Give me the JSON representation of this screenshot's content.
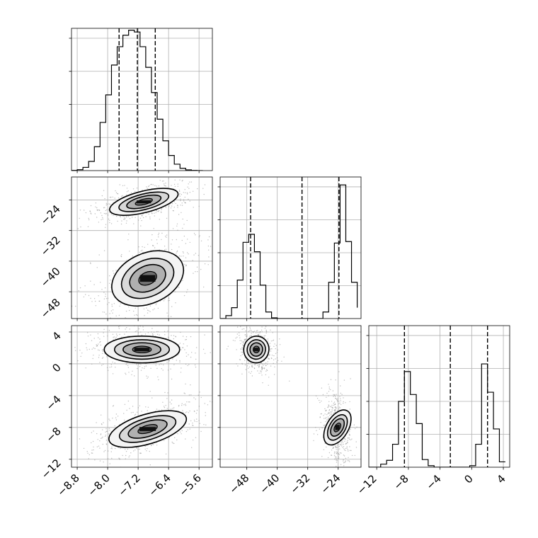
{
  "chart_data": [
    {
      "type": "histogram",
      "panel": "row0-col0",
      "xlim": [
        -8.95,
        -5.25
      ],
      "ylim": [
        0,
        3100
      ],
      "x_ticks": [
        -8.8,
        -8.0,
        -7.2,
        -6.4,
        -5.6
      ],
      "bin_edges": [
        -8.95,
        -8.8,
        -8.65,
        -8.5,
        -8.35,
        -8.2,
        -8.05,
        -7.9,
        -7.75,
        -7.6,
        -7.45,
        -7.3,
        -7.15,
        -7.0,
        -6.85,
        -6.7,
        -6.55,
        -6.4,
        -6.25,
        -6.1,
        -5.95,
        -5.8,
        -5.65,
        -5.5
      ],
      "counts": [
        5,
        20,
        70,
        200,
        520,
        1050,
        1650,
        2300,
        2700,
        2950,
        3060,
        3020,
        2700,
        2250,
        1700,
        1120,
        650,
        330,
        140,
        50,
        15,
        4,
        1
      ],
      "quantile_lines": [
        -7.7,
        -7.22,
        -6.75
      ]
    },
    {
      "type": "histogram",
      "panel": "row1-col1",
      "xlim": [
        -55,
        -18
      ],
      "ylim": [
        0,
        1950
      ],
      "x_ticks": [
        -48,
        -40,
        -32,
        -24
      ],
      "bin_edges": [
        -55,
        -53.5,
        -52,
        -50.5,
        -49,
        -47.5,
        -46,
        -44.5,
        -43,
        -41.5,
        -40,
        -38.5,
        -37,
        -35.5,
        -34,
        -32.5,
        -31,
        -29.5,
        -28,
        -26.5,
        -25,
        -23.5,
        -22,
        -20.5,
        -19
      ],
      "counts": [
        0,
        40,
        150,
        530,
        1050,
        1160,
        920,
        460,
        90,
        10,
        0,
        0,
        0,
        0,
        0,
        0,
        0,
        0,
        90,
        500,
        1040,
        1840,
        1060,
        500,
        150
      ],
      "quantile_lines": [
        -47,
        -33.5,
        -23.8
      ]
    },
    {
      "type": "histogram",
      "panel": "row2-col2",
      "xlim": [
        -13,
        4.8
      ],
      "ylim": [
        0,
        1850
      ],
      "x_ticks": [
        -12,
        -8,
        -4,
        0,
        4
      ],
      "bin_edges": [
        -13,
        -12.25,
        -11.5,
        -10.75,
        -10,
        -9.25,
        -8.5,
        -7.75,
        -7,
        -6.25,
        -5.5,
        -4.75,
        -4,
        -3.25,
        -2.5,
        -1.75,
        -1,
        -0.25,
        0.5,
        1.25,
        2,
        2.75,
        3.5,
        4.25
      ],
      "counts": [
        0,
        0,
        40,
        90,
        300,
        860,
        1250,
        950,
        570,
        100,
        20,
        0,
        0,
        0,
        0,
        0,
        0,
        20,
        300,
        1350,
        980,
        500,
        70
      ],
      "quantile_lines": [
        -8.5,
        -2.7,
        2.0
      ]
    },
    {
      "type": "scatter-density",
      "panel": "row1-col0",
      "xlim": [
        -8.95,
        -5.25
      ],
      "ylim": [
        -55,
        -18
      ],
      "x_ticks": [
        -8.8,
        -8.0,
        -7.2,
        -6.4,
        -5.6
      ],
      "y_ticks": [
        -24,
        -32,
        -40,
        -48
      ],
      "modes": [
        {
          "mean_x": -7.05,
          "mean_y": -24.5,
          "sd_x": 0.42,
          "sd_y": 1.5,
          "tilt": 0.25
        },
        {
          "mean_x": -6.95,
          "mean_y": -44.5,
          "sd_x": 0.45,
          "sd_y": 3.5,
          "tilt": 0.45
        }
      ]
    },
    {
      "type": "scatter-density",
      "panel": "row2-col0",
      "xlim": [
        -8.95,
        -5.25
      ],
      "ylim": [
        -13,
        4.8
      ],
      "x_ticks": [
        -8.8,
        -8.0,
        -7.2,
        -6.4,
        -5.6
      ],
      "y_ticks": [
        4,
        0,
        -4,
        -8,
        -12
      ],
      "x_ticklabels": [
        "−8.8",
        "−8.0",
        "−7.2",
        "−6.4",
        "−5.6"
      ],
      "y_ticklabels": [
        "4",
        "0",
        "−4",
        "−8",
        "−12"
      ],
      "modes": [
        {
          "mean_x": -7.1,
          "mean_y": 1.8,
          "sd_x": 0.45,
          "sd_y": 0.9,
          "tilt": 0.0
        },
        {
          "mean_x": -6.95,
          "mean_y": -8.2,
          "sd_x": 0.48,
          "sd_y": 1.0,
          "tilt": 0.3
        }
      ]
    },
    {
      "type": "scatter-density",
      "panel": "row2-col1",
      "xlim": [
        -55,
        -18
      ],
      "ylim": [
        -13,
        4.8
      ],
      "x_ticks": [
        -48,
        -40,
        -32,
        -24
      ],
      "y_ticks": [
        4,
        0,
        -4,
        -8,
        -12
      ],
      "x_ticklabels": [
        "−48",
        "−40",
        "−32",
        "−24"
      ],
      "modes": [
        {
          "mean_x": -45.5,
          "mean_y": 1.8,
          "sd_x": 1.5,
          "sd_y": 0.9,
          "tilt": -0.2
        },
        {
          "mean_x": -24.2,
          "mean_y": -8.0,
          "sd_x": 1.3,
          "sd_y": 1.3,
          "tilt": -0.6
        }
      ]
    }
  ],
  "axis_labels": {
    "p1_y": [
      "−24",
      "−32",
      "−40",
      "−48"
    ],
    "p2_x": [
      "−12",
      "−8",
      "−4",
      "0",
      "4"
    ]
  }
}
